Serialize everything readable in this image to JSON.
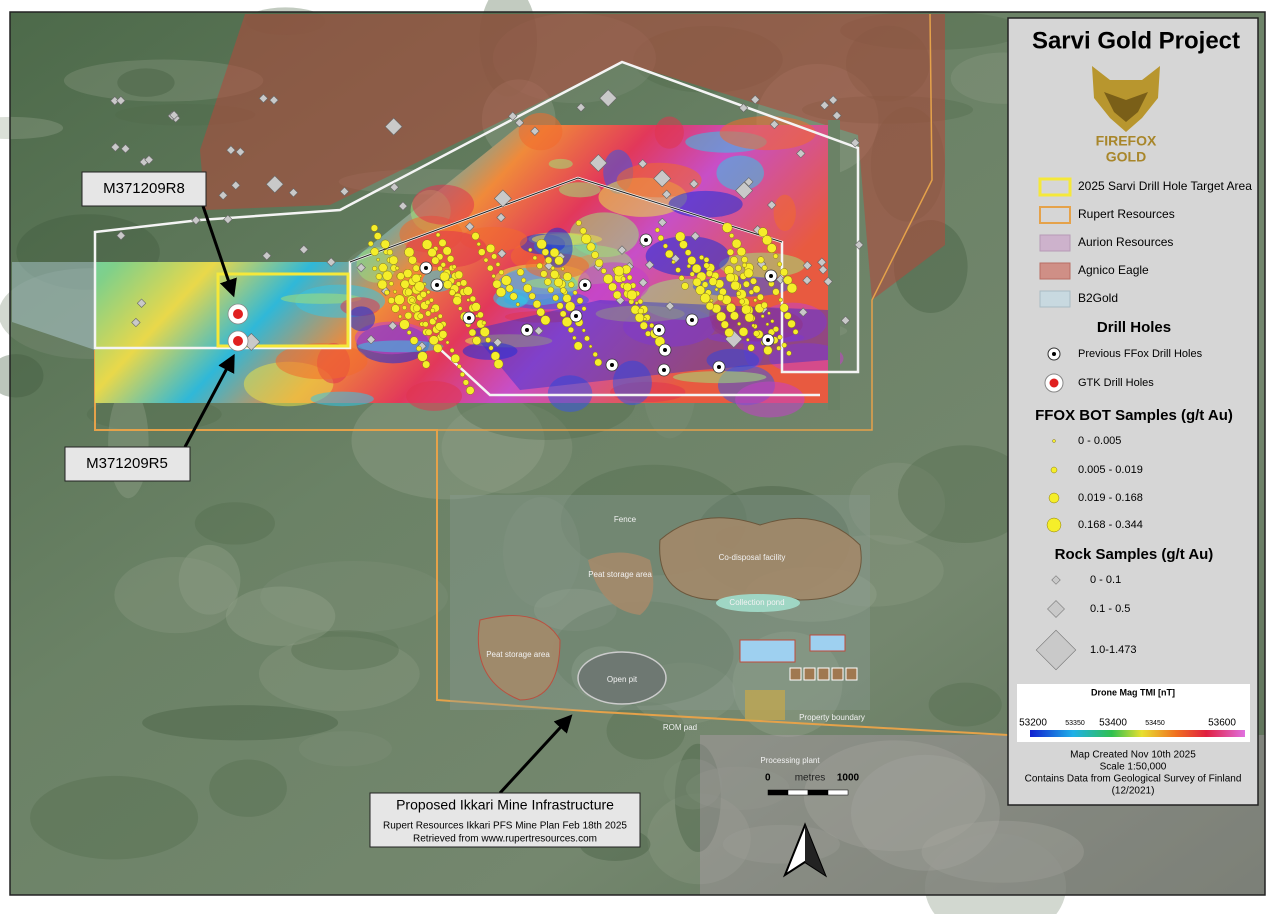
{
  "map": {
    "title": "Sarvi Gold Project",
    "logo": {
      "name": "FIREFOX",
      "sub": "GOLD"
    },
    "legend": {
      "areas": [
        "2025 Sarvi Drill Hole Target Area",
        "Rupert Resources",
        "Aurion Resources",
        "Agnico Eagle",
        "B2Gold"
      ],
      "drill_holes": {
        "heading": "Drill Holes",
        "items": [
          "Previous FFox Drill Holes",
          "GTK Drill Holes"
        ]
      },
      "bot_samples": {
        "heading": "FFOX BOT Samples (g/t Au)",
        "items": [
          "0 - 0.005",
          "0.005 - 0.019",
          "0.019 - 0.168",
          "0.168 - 0.344"
        ]
      },
      "rock_samples": {
        "heading": "Rock Samples (g/t Au)",
        "items": [
          "0 - 0.1",
          "0.1 - 0.5",
          "1.0-1.473"
        ]
      },
      "colorbar": {
        "title": "Drone Mag TMI [nT]",
        "ticks": [
          53200,
          53350,
          53400,
          53450,
          53600
        ]
      },
      "notes": [
        "Map Created Nov 10th 2025",
        "Scale 1:50,000",
        "Contains Data from Geological Survey of Finland",
        "(12/2021)"
      ]
    },
    "callouts": {
      "r8": "M371209R8",
      "r5": "M371209R5",
      "mine": {
        "title": "Proposed Ikkari Mine Infrastructure",
        "source": "Rupert Resources Ikkari PFS Mine Plan Feb 18th 2025",
        "retrieved": "Retrieved from www.rupertresources.com"
      }
    },
    "mine_plan_labels": [
      "Co-disposal facility",
      "Collection pond",
      "Peat storage area",
      "Peat storage area",
      "Open pit",
      "ROM pad",
      "Processing plant",
      "Property boundary",
      "Fence"
    ],
    "scale_bar": {
      "start": 0,
      "unit": "metres",
      "end": 1000
    }
  }
}
